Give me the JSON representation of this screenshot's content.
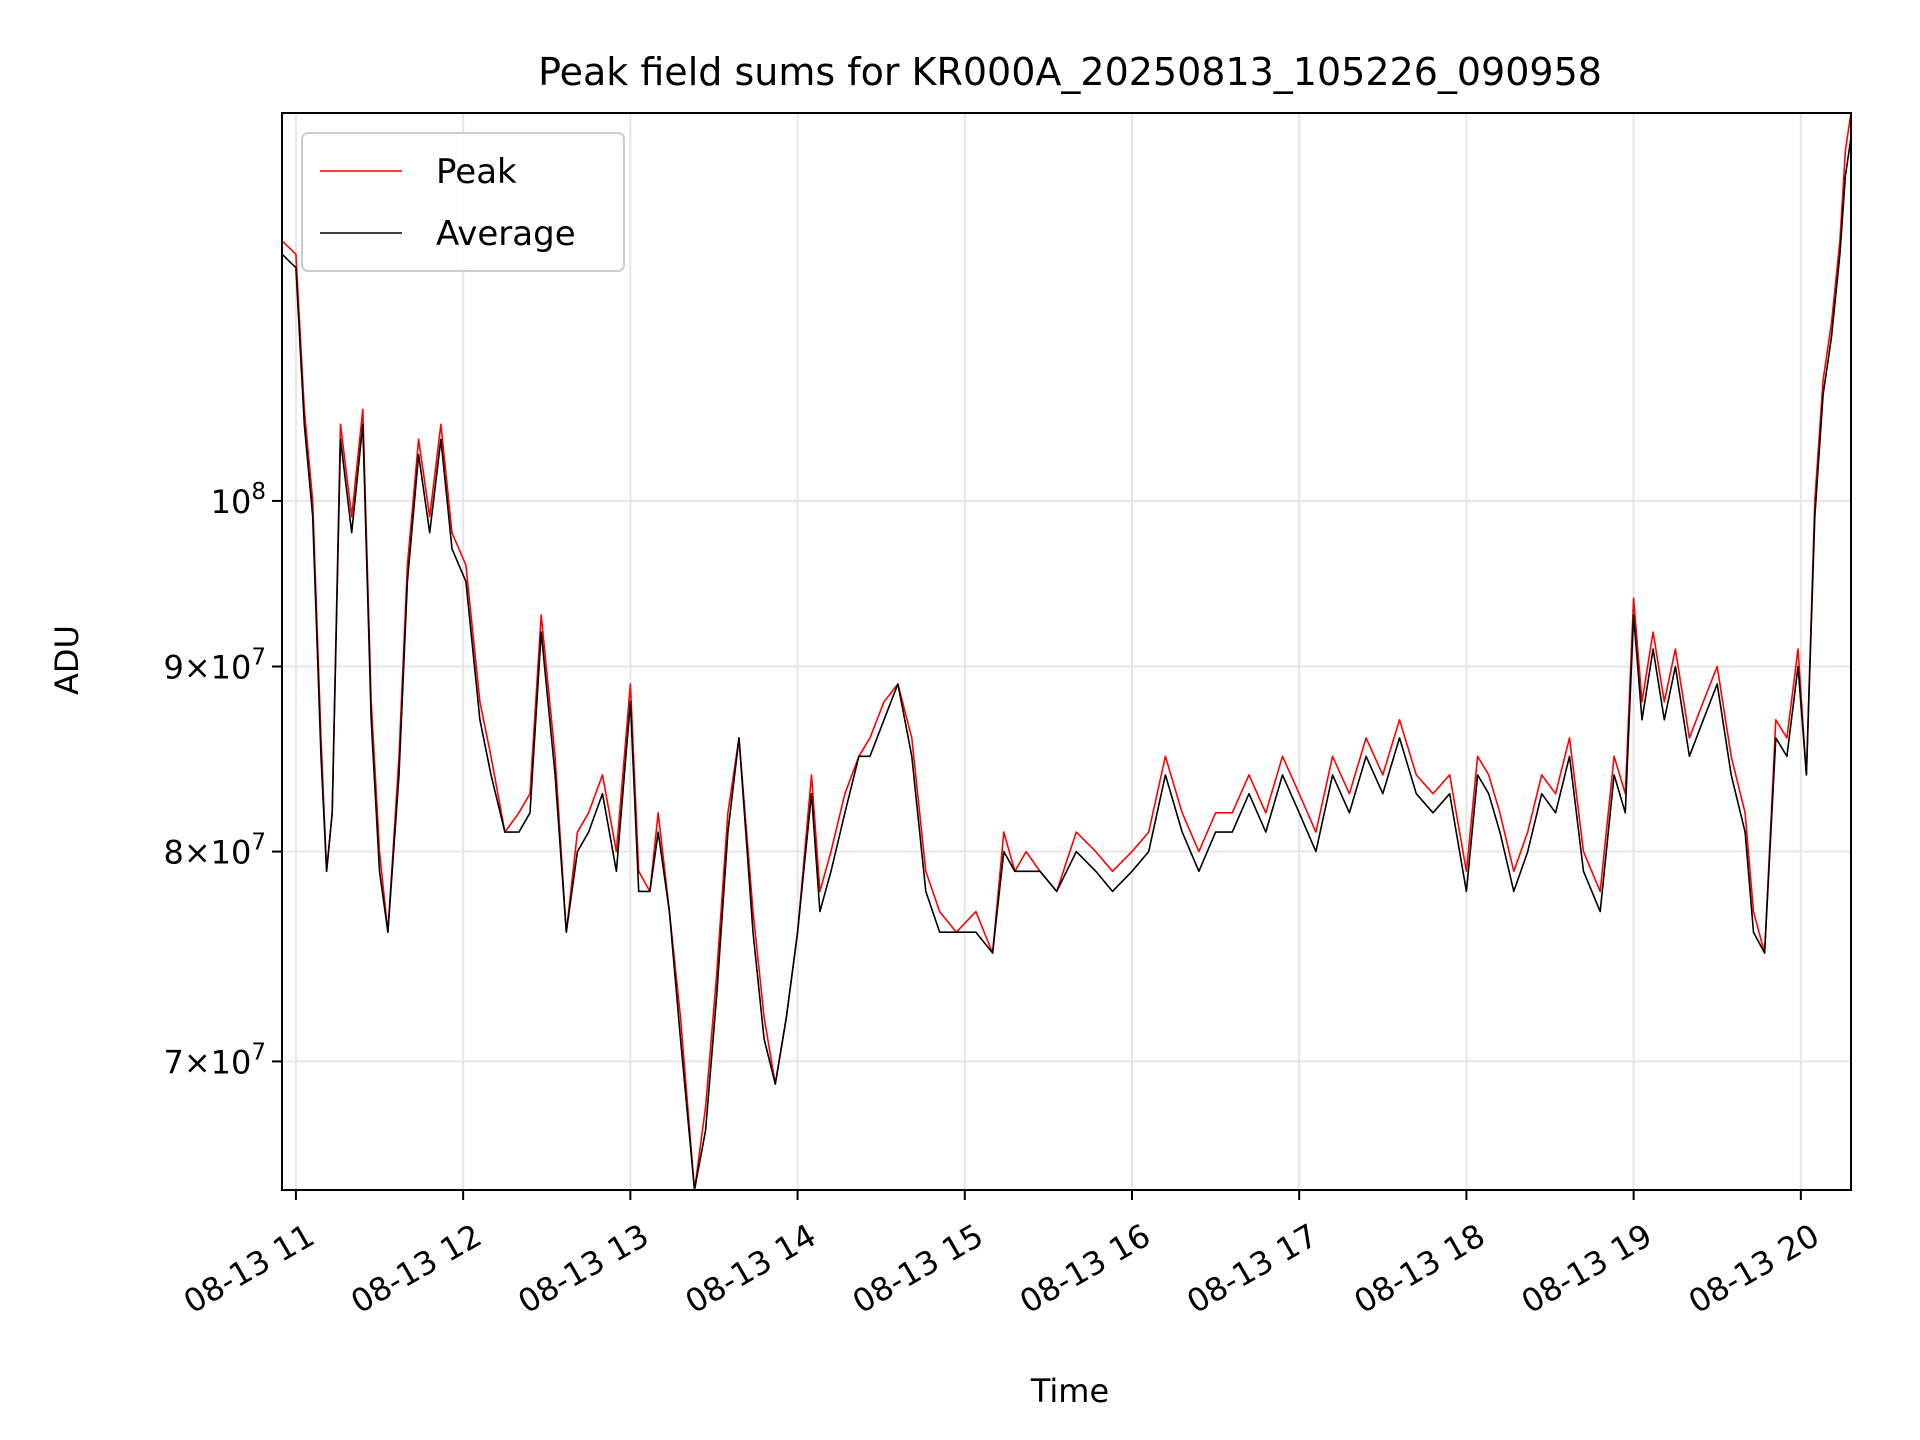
{
  "chart_data": {
    "type": "line",
    "title": "Peak field sums for KR000A_20250813_105226_090958",
    "xlabel": "Time",
    "ylabel": "ADU",
    "yscale": "log",
    "xlim": [
      "2025-08-13T10:55",
      "2025-08-13T20:18"
    ],
    "ylim": [
      64500000,
      128000000
    ],
    "grid": true,
    "legend": "upper left",
    "x_ticks": [
      {
        "label": "08-13 11",
        "value": "2025-08-13T11:00"
      },
      {
        "label": "08-13 12",
        "value": "2025-08-13T12:00"
      },
      {
        "label": "08-13 13",
        "value": "2025-08-13T13:00"
      },
      {
        "label": "08-13 14",
        "value": "2025-08-13T14:00"
      },
      {
        "label": "08-13 15",
        "value": "2025-08-13T15:00"
      },
      {
        "label": "08-13 16",
        "value": "2025-08-13T16:00"
      },
      {
        "label": "08-13 17",
        "value": "2025-08-13T17:00"
      },
      {
        "label": "08-13 18",
        "value": "2025-08-13T18:00"
      },
      {
        "label": "08-13 19",
        "value": "2025-08-13T19:00"
      },
      {
        "label": "08-13 20",
        "value": "2025-08-13T20:00"
      }
    ],
    "y_ticks": [
      {
        "mantissa": "7",
        "value": 70000000
      },
      {
        "mantissa": "8",
        "value": 80000000
      },
      {
        "mantissa": "9",
        "value": 90000000
      },
      {
        "mantissa": "",
        "value": 100000000
      }
    ],
    "series": [
      {
        "name": "Peak",
        "color": "#ff0000",
        "x": [
          "2025-08-13T10:55",
          "2025-08-13T11:00",
          "2025-08-13T11:03",
          "2025-08-13T11:06",
          "2025-08-13T11:09",
          "2025-08-13T11:11",
          "2025-08-13T11:13",
          "2025-08-13T11:16",
          "2025-08-13T11:20",
          "2025-08-13T11:24",
          "2025-08-13T11:27",
          "2025-08-13T11:30",
          "2025-08-13T11:33",
          "2025-08-13T11:37",
          "2025-08-13T11:40",
          "2025-08-13T11:44",
          "2025-08-13T11:48",
          "2025-08-13T11:52",
          "2025-08-13T11:56",
          "2025-08-13T12:01",
          "2025-08-13T12:06",
          "2025-08-13T12:10",
          "2025-08-13T12:15",
          "2025-08-13T12:20",
          "2025-08-13T12:24",
          "2025-08-13T12:28",
          "2025-08-13T12:33",
          "2025-08-13T12:37",
          "2025-08-13T12:41",
          "2025-08-13T12:45",
          "2025-08-13T12:50",
          "2025-08-13T12:55",
          "2025-08-13T13:00",
          "2025-08-13T13:03",
          "2025-08-13T13:07",
          "2025-08-13T13:10",
          "2025-08-13T13:14",
          "2025-08-13T13:18",
          "2025-08-13T13:23",
          "2025-08-13T13:27",
          "2025-08-13T13:31",
          "2025-08-13T13:35",
          "2025-08-13T13:39",
          "2025-08-13T13:44",
          "2025-08-13T13:48",
          "2025-08-13T13:52",
          "2025-08-13T13:56",
          "2025-08-13T14:00",
          "2025-08-13T14:05",
          "2025-08-13T14:08",
          "2025-08-13T14:12",
          "2025-08-13T14:17",
          "2025-08-13T14:22",
          "2025-08-13T14:26",
          "2025-08-13T14:31",
          "2025-08-13T14:36",
          "2025-08-13T14:41",
          "2025-08-13T14:46",
          "2025-08-13T14:51",
          "2025-08-13T14:57",
          "2025-08-13T15:04",
          "2025-08-13T15:10",
          "2025-08-13T15:14",
          "2025-08-13T15:18",
          "2025-08-13T15:22",
          "2025-08-13T15:27",
          "2025-08-13T15:33",
          "2025-08-13T15:40",
          "2025-08-13T15:47",
          "2025-08-13T15:53",
          "2025-08-13T16:00",
          "2025-08-13T16:06",
          "2025-08-13T16:12",
          "2025-08-13T16:18",
          "2025-08-13T16:24",
          "2025-08-13T16:30",
          "2025-08-13T16:36",
          "2025-08-13T16:42",
          "2025-08-13T16:48",
          "2025-08-13T16:54",
          "2025-08-13T17:00",
          "2025-08-13T17:06",
          "2025-08-13T17:12",
          "2025-08-13T17:18",
          "2025-08-13T17:24",
          "2025-08-13T17:30",
          "2025-08-13T17:36",
          "2025-08-13T17:42",
          "2025-08-13T17:48",
          "2025-08-13T17:54",
          "2025-08-13T18:00",
          "2025-08-13T18:04",
          "2025-08-13T18:08",
          "2025-08-13T18:12",
          "2025-08-13T18:17",
          "2025-08-13T18:22",
          "2025-08-13T18:27",
          "2025-08-13T18:32",
          "2025-08-13T18:37",
          "2025-08-13T18:42",
          "2025-08-13T18:48",
          "2025-08-13T18:53",
          "2025-08-13T18:57",
          "2025-08-13T19:00",
          "2025-08-13T19:03",
          "2025-08-13T19:07",
          "2025-08-13T19:11",
          "2025-08-13T19:15",
          "2025-08-13T19:20",
          "2025-08-13T19:25",
          "2025-08-13T19:30",
          "2025-08-13T19:35",
          "2025-08-13T19:40",
          "2025-08-13T19:43",
          "2025-08-13T19:47",
          "2025-08-13T19:51",
          "2025-08-13T19:55",
          "2025-08-13T19:59",
          "2025-08-13T20:02",
          "2025-08-13T20:05",
          "2025-08-13T20:08",
          "2025-08-13T20:11",
          "2025-08-13T20:14",
          "2025-08-13T20:16",
          "2025-08-13T20:18"
        ],
        "y": [
          118000000,
          117000000,
          106000000,
          100000000,
          86000000,
          79000000,
          82000000,
          105000000,
          99000000,
          106000000,
          88000000,
          80000000,
          76000000,
          85000000,
          96000000,
          104000000,
          99000000,
          105000000,
          98000000,
          96000000,
          88000000,
          85000000,
          81000000,
          82000000,
          83000000,
          93000000,
          85000000,
          76000000,
          81000000,
          82000000,
          84000000,
          80000000,
          89000000,
          79000000,
          78000000,
          82000000,
          77000000,
          72000000,
          64500000,
          68000000,
          74000000,
          82000000,
          86000000,
          77000000,
          72000000,
          69000000,
          72000000,
          76000000,
          84000000,
          78000000,
          80000000,
          83000000,
          85000000,
          86000000,
          88000000,
          89000000,
          86000000,
          79000000,
          77000000,
          76000000,
          77000000,
          75000000,
          81000000,
          79000000,
          80000000,
          79000000,
          78000000,
          81000000,
          80000000,
          79000000,
          80000000,
          81000000,
          85000000,
          82000000,
          80000000,
          82000000,
          82000000,
          84000000,
          82000000,
          85000000,
          83000000,
          81000000,
          85000000,
          83000000,
          86000000,
          84000000,
          87000000,
          84000000,
          83000000,
          84000000,
          79000000,
          85000000,
          84000000,
          82000000,
          79000000,
          81000000,
          84000000,
          83000000,
          86000000,
          80000000,
          78000000,
          85000000,
          83000000,
          94000000,
          88000000,
          92000000,
          88000000,
          91000000,
          86000000,
          88000000,
          90000000,
          85000000,
          82000000,
          77000000,
          75000000,
          87000000,
          86000000,
          91000000,
          84000000,
          100000000,
          108000000,
          112000000,
          118000000,
          125000000,
          128000000
        ]
      },
      {
        "name": "Average",
        "color": "#000000",
        "x": [
          "2025-08-13T10:55",
          "2025-08-13T11:00",
          "2025-08-13T11:03",
          "2025-08-13T11:06",
          "2025-08-13T11:09",
          "2025-08-13T11:11",
          "2025-08-13T11:13",
          "2025-08-13T11:16",
          "2025-08-13T11:20",
          "2025-08-13T11:24",
          "2025-08-13T11:27",
          "2025-08-13T11:30",
          "2025-08-13T11:33",
          "2025-08-13T11:37",
          "2025-08-13T11:40",
          "2025-08-13T11:44",
          "2025-08-13T11:48",
          "2025-08-13T11:52",
          "2025-08-13T11:56",
          "2025-08-13T12:01",
          "2025-08-13T12:06",
          "2025-08-13T12:10",
          "2025-08-13T12:15",
          "2025-08-13T12:20",
          "2025-08-13T12:24",
          "2025-08-13T12:28",
          "2025-08-13T12:33",
          "2025-08-13T12:37",
          "2025-08-13T12:41",
          "2025-08-13T12:45",
          "2025-08-13T12:50",
          "2025-08-13T12:55",
          "2025-08-13T13:00",
          "2025-08-13T13:03",
          "2025-08-13T13:07",
          "2025-08-13T13:10",
          "2025-08-13T13:14",
          "2025-08-13T13:18",
          "2025-08-13T13:23",
          "2025-08-13T13:27",
          "2025-08-13T13:31",
          "2025-08-13T13:35",
          "2025-08-13T13:39",
          "2025-08-13T13:44",
          "2025-08-13T13:48",
          "2025-08-13T13:52",
          "2025-08-13T13:56",
          "2025-08-13T14:00",
          "2025-08-13T14:05",
          "2025-08-13T14:08",
          "2025-08-13T14:12",
          "2025-08-13T14:17",
          "2025-08-13T14:22",
          "2025-08-13T14:26",
          "2025-08-13T14:31",
          "2025-08-13T14:36",
          "2025-08-13T14:41",
          "2025-08-13T14:46",
          "2025-08-13T14:51",
          "2025-08-13T14:57",
          "2025-08-13T15:04",
          "2025-08-13T15:10",
          "2025-08-13T15:14",
          "2025-08-13T15:18",
          "2025-08-13T15:22",
          "2025-08-13T15:27",
          "2025-08-13T15:33",
          "2025-08-13T15:40",
          "2025-08-13T15:47",
          "2025-08-13T15:53",
          "2025-08-13T16:00",
          "2025-08-13T16:06",
          "2025-08-13T16:12",
          "2025-08-13T16:18",
          "2025-08-13T16:24",
          "2025-08-13T16:30",
          "2025-08-13T16:36",
          "2025-08-13T16:42",
          "2025-08-13T16:48",
          "2025-08-13T16:54",
          "2025-08-13T17:00",
          "2025-08-13T17:06",
          "2025-08-13T17:12",
          "2025-08-13T17:18",
          "2025-08-13T17:24",
          "2025-08-13T17:30",
          "2025-08-13T17:36",
          "2025-08-13T17:42",
          "2025-08-13T17:48",
          "2025-08-13T17:54",
          "2025-08-13T18:00",
          "2025-08-13T18:04",
          "2025-08-13T18:08",
          "2025-08-13T18:12",
          "2025-08-13T18:17",
          "2025-08-13T18:22",
          "2025-08-13T18:27",
          "2025-08-13T18:32",
          "2025-08-13T18:37",
          "2025-08-13T18:42",
          "2025-08-13T18:48",
          "2025-08-13T18:53",
          "2025-08-13T18:57",
          "2025-08-13T19:00",
          "2025-08-13T19:03",
          "2025-08-13T19:07",
          "2025-08-13T19:11",
          "2025-08-13T19:15",
          "2025-08-13T19:20",
          "2025-08-13T19:25",
          "2025-08-13T19:30",
          "2025-08-13T19:35",
          "2025-08-13T19:40",
          "2025-08-13T19:43",
          "2025-08-13T19:47",
          "2025-08-13T19:51",
          "2025-08-13T19:55",
          "2025-08-13T19:59",
          "2025-08-13T20:02",
          "2025-08-13T20:05",
          "2025-08-13T20:08",
          "2025-08-13T20:11",
          "2025-08-13T20:14",
          "2025-08-13T20:16",
          "2025-08-13T20:18"
        ],
        "y": [
          117000000,
          116000000,
          105000000,
          99000000,
          85000000,
          79000000,
          82000000,
          104000000,
          98000000,
          105000000,
          87000000,
          79000000,
          76000000,
          84000000,
          95000000,
          103000000,
          98000000,
          104000000,
          97000000,
          95000000,
          87000000,
          84000000,
          81000000,
          81000000,
          82000000,
          92000000,
          84000000,
          76000000,
          80000000,
          81000000,
          83000000,
          79000000,
          88000000,
          78000000,
          78000000,
          81000000,
          77000000,
          71000000,
          64500000,
          67000000,
          73000000,
          81000000,
          86000000,
          76000000,
          71000000,
          69000000,
          72000000,
          76000000,
          83000000,
          77000000,
          79000000,
          82000000,
          85000000,
          85000000,
          87000000,
          89000000,
          85000000,
          78000000,
          76000000,
          76000000,
          76000000,
          75000000,
          80000000,
          79000000,
          79000000,
          79000000,
          78000000,
          80000000,
          79000000,
          78000000,
          79000000,
          80000000,
          84000000,
          81000000,
          79000000,
          81000000,
          81000000,
          83000000,
          81000000,
          84000000,
          82000000,
          80000000,
          84000000,
          82000000,
          85000000,
          83000000,
          86000000,
          83000000,
          82000000,
          83000000,
          78000000,
          84000000,
          83000000,
          81000000,
          78000000,
          80000000,
          83000000,
          82000000,
          85000000,
          79000000,
          77000000,
          84000000,
          82000000,
          93000000,
          87000000,
          91000000,
          87000000,
          90000000,
          85000000,
          87000000,
          89000000,
          84000000,
          81000000,
          76000000,
          75000000,
          86000000,
          85000000,
          90000000,
          84000000,
          99000000,
          107000000,
          111000000,
          117000000,
          123000000,
          126000000
        ]
      }
    ]
  }
}
